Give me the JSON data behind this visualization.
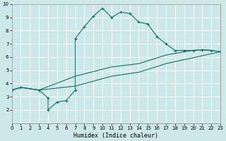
{
  "xlabel": "Humidex (Indice chaleur)",
  "xlim": [
    0,
    23
  ],
  "ylim": [
    1,
    10
  ],
  "xticks": [
    0,
    1,
    2,
    3,
    4,
    5,
    6,
    7,
    8,
    9,
    10,
    11,
    12,
    13,
    14,
    15,
    16,
    17,
    18,
    19,
    20,
    21,
    22,
    23
  ],
  "yticks": [
    2,
    3,
    4,
    5,
    6,
    7,
    8,
    9,
    10
  ],
  "bg_color": "#cce8e8",
  "line_color": "#1a6e62",
  "grid_color": "#ffffff",
  "line1": {
    "x": [
      0,
      1,
      3,
      4,
      4,
      5,
      6,
      7,
      7,
      8,
      9,
      10,
      11,
      12,
      13,
      14,
      15,
      16,
      17,
      18,
      19,
      20,
      21,
      22,
      23
    ],
    "y": [
      3.5,
      3.7,
      3.5,
      2.9,
      2.0,
      2.6,
      2.7,
      3.5,
      7.4,
      8.3,
      9.1,
      9.7,
      9.0,
      9.4,
      9.3,
      8.65,
      8.5,
      7.55,
      7.0,
      6.5,
      6.5,
      6.5,
      6.55,
      6.5,
      6.4
    ]
  },
  "line2": {
    "x": [
      0,
      1,
      3,
      7,
      11,
      14,
      17,
      19,
      20,
      21,
      22,
      23
    ],
    "y": [
      3.5,
      3.7,
      3.5,
      4.55,
      5.25,
      5.5,
      6.15,
      6.4,
      6.5,
      6.55,
      6.5,
      6.4
    ]
  },
  "line3": {
    "x": [
      0,
      1,
      3,
      7,
      11,
      14,
      17,
      19,
      20,
      21,
      22,
      23
    ],
    "y": [
      3.5,
      3.7,
      3.5,
      3.8,
      4.55,
      4.85,
      5.5,
      5.8,
      5.95,
      6.1,
      6.25,
      6.4
    ]
  }
}
